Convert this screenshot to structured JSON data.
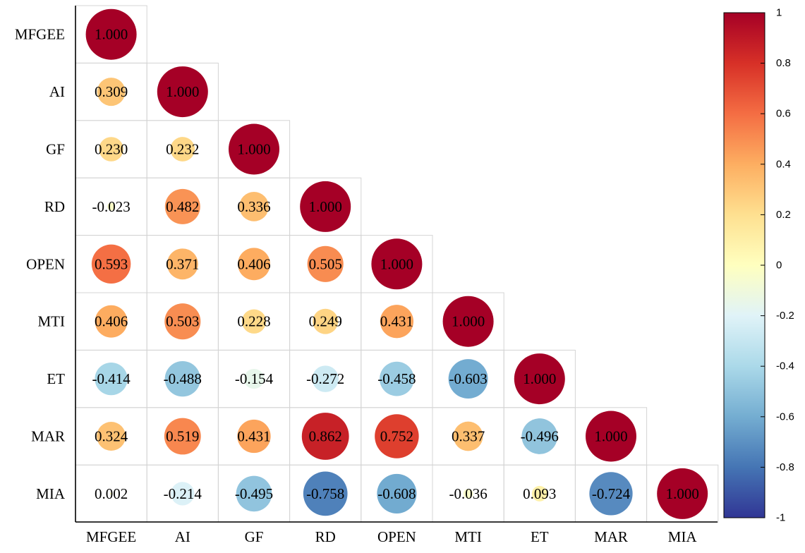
{
  "chart_data": {
    "type": "heatmap",
    "title": "",
    "variables": [
      "MFGEE",
      "AI",
      "GF",
      "RD",
      "OPEN",
      "MTI",
      "ET",
      "MAR",
      "MIA"
    ],
    "matrix": [
      [
        "1.000"
      ],
      [
        "0.309",
        "1.000"
      ],
      [
        "0.230",
        "0.232",
        "1.000"
      ],
      [
        "-0.023",
        "0.482",
        "0.336",
        "1.000"
      ],
      [
        "0.593",
        "0.371",
        "0.406",
        "0.505",
        "1.000"
      ],
      [
        "0.406",
        "0.503",
        "0.228",
        "0.249",
        "0.431",
        "1.000"
      ],
      [
        "-0.414",
        "-0.488",
        "-0.154",
        "-0.272",
        "-0.458",
        "-0.603",
        "1.000"
      ],
      [
        "0.324",
        "0.519",
        "0.431",
        "0.862",
        "0.752",
        "0.337",
        "-0.496",
        "1.000"
      ],
      [
        "0.002",
        "-0.214",
        "-0.495",
        "-0.758",
        "-0.608",
        "-0.036",
        "0.093",
        "-0.724",
        "1.000"
      ]
    ],
    "colorbar": {
      "range": [
        -1,
        1
      ],
      "ticks": [
        "1",
        "0.8",
        "0.6",
        "0.4",
        "0.2",
        "0",
        "-0.2",
        "-0.4",
        "-0.6",
        "-0.8",
        "-1"
      ],
      "colormap": "RdYlBu_r",
      "stops": [
        "#313695",
        "#4575b4",
        "#74add1",
        "#abd9e9",
        "#e0f3f8",
        "#ffffbf",
        "#fee090",
        "#fdae61",
        "#f46d43",
        "#d73027",
        "#a50026"
      ]
    },
    "layout": "lower-triangle",
    "marker": "circle sized by |r|",
    "grid": true
  }
}
